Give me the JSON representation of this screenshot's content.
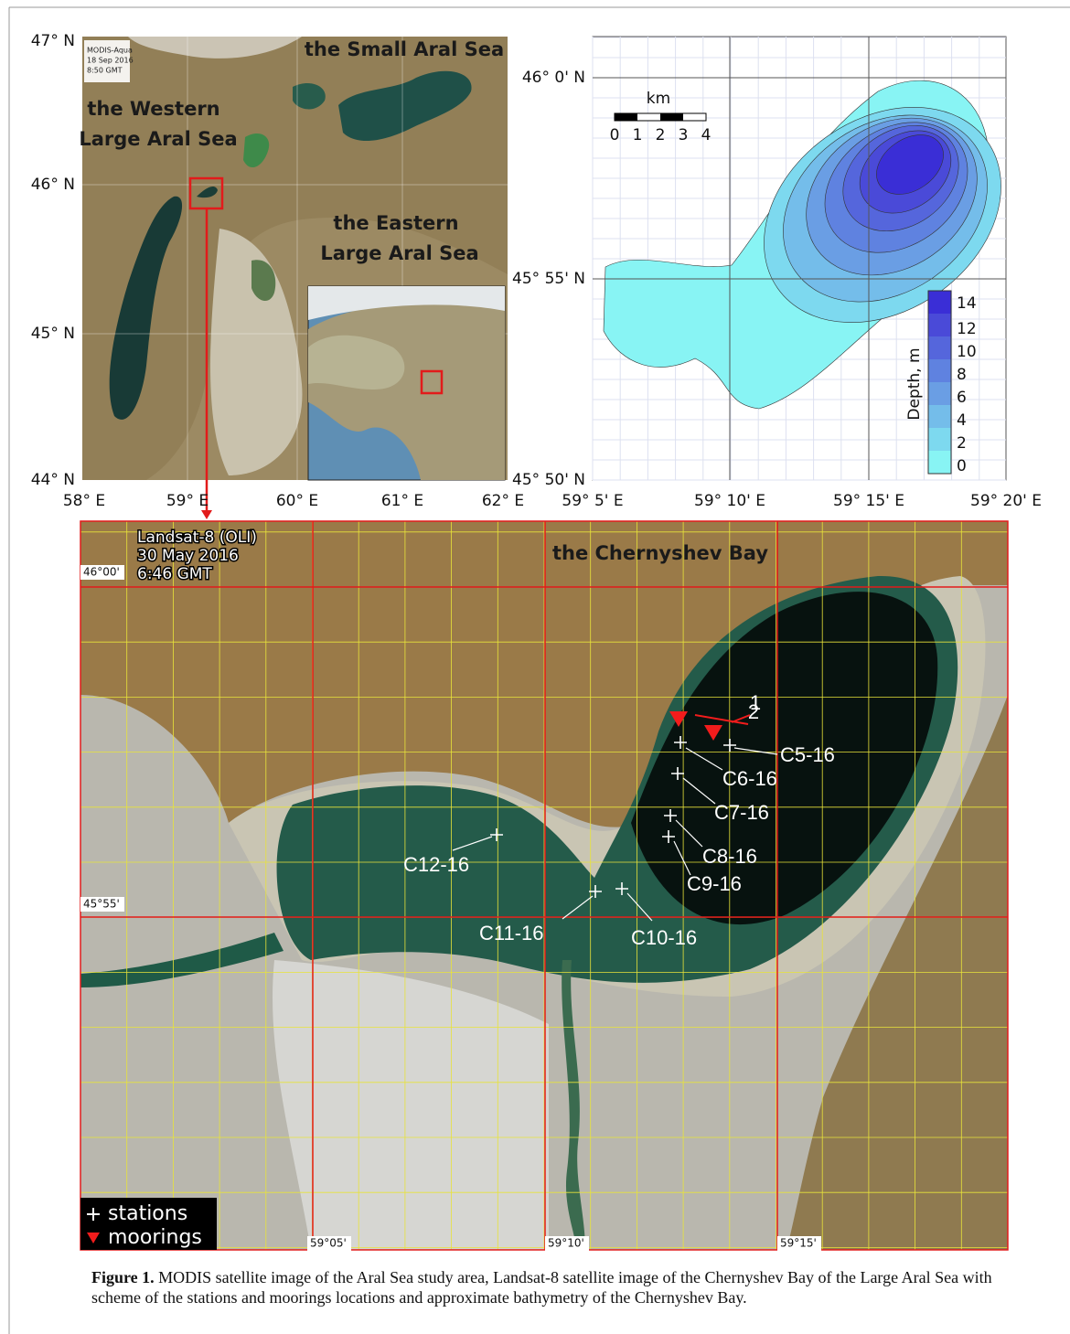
{
  "figure": {
    "modis_panel": {
      "y_labels": [
        "47° N",
        "46° N",
        "45° N",
        "44° N"
      ],
      "x_labels": [
        "58° E",
        "59° E",
        "60° E",
        "61° E",
        "62° E"
      ],
      "stamp": [
        "MODIS-Aqua",
        "18 Sep 2016",
        "8:50 GMT"
      ],
      "labels": [
        "the Small Aral Sea",
        "the Western",
        "Large Aral Sea",
        "the Eastern",
        "Large Aral Sea"
      ]
    },
    "bathymetry_panel": {
      "y_labels": [
        "46° 0' N",
        "45° 55' N",
        "45° 50' N"
      ],
      "x_labels": [
        "59° 5' E",
        "59° 10' E",
        "59° 15' E",
        "59° 20' E"
      ],
      "scale_title": "km",
      "scale_labels": [
        "0",
        "1",
        "2",
        "3",
        "4"
      ],
      "colorbar_title": "Depth, m",
      "colorbar_labels": [
        "14",
        "12",
        "10",
        "8",
        "6",
        "4",
        "2",
        "0"
      ]
    },
    "landsat_panel": {
      "stamp": [
        "Landsat-8 (OLI)",
        "30 May 2016",
        "6:46 GMT"
      ],
      "bay_label": "the Chernyshev Bay",
      "lat_labels": [
        "46°00'",
        "45°55'"
      ],
      "lon_labels": [
        "59°05'",
        "59°10'",
        "59°15'"
      ],
      "stations": [
        "C5-16",
        "C6-16",
        "C7-16",
        "C8-16",
        "C9-16",
        "C10-16",
        "C11-16",
        "C12-16"
      ],
      "moorings": [
        "1",
        "2"
      ],
      "legend": [
        "stations",
        "moorings"
      ]
    },
    "caption": {
      "label": "Figure 1.",
      "text": "MODIS satellite image of the Aral Sea study area, Landsat-8 satellite image of the Chernyshev Bay of the Large Aral Sea with scheme of the stations and moorings locations and approximate bathymetry of the Chernyshev Bay."
    }
  }
}
